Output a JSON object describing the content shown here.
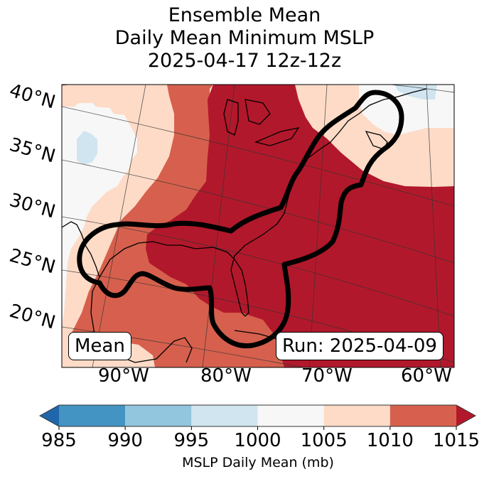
{
  "title": {
    "lines": [
      "Ensemble Mean",
      "Daily Mean Minimum MSLP",
      "2025-04-17 12z-12z"
    ]
  },
  "map": {
    "lat_labels": [
      "40°N",
      "35°N",
      "30°N",
      "25°N",
      "20°N"
    ],
    "lon_labels": [
      "90°W",
      "80°W",
      "70°W",
      "60°W"
    ],
    "mean_box": "Mean",
    "run_box": "Run: 2025-04-09",
    "field_bins": [
      {
        "range": "1000-1005",
        "color": "#f7f7f7"
      },
      {
        "range": "995-1000",
        "color": "#d1e5f0"
      },
      {
        "range": "1005-1010",
        "color": "#fddbc7"
      },
      {
        "range": "1010-1015",
        "color": "#d6604d"
      },
      {
        "range": ">1015",
        "color": "#b2182b"
      }
    ],
    "contour_color": "#000000"
  },
  "colorbar": {
    "label": "MSLP Daily Mean (mb)",
    "ticks": [
      "985",
      "990",
      "995",
      "1000",
      "1005",
      "1010",
      "1015"
    ],
    "under_color": "#2166ac",
    "over_color": "#b2182b",
    "bins": [
      {
        "from": 985,
        "to": 990,
        "color": "#4393c3"
      },
      {
        "from": 990,
        "to": 995,
        "color": "#92c5de"
      },
      {
        "from": 995,
        "to": 1000,
        "color": "#d1e5f0"
      },
      {
        "from": 1000,
        "to": 1005,
        "color": "#f7f7f7"
      },
      {
        "from": 1005,
        "to": 1010,
        "color": "#fddbc7"
      },
      {
        "from": 1010,
        "to": 1015,
        "color": "#d6604d"
      }
    ]
  }
}
